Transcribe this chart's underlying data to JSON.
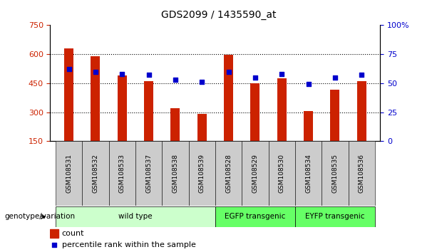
{
  "title": "GDS2099 / 1435590_at",
  "samples": [
    "GSM108531",
    "GSM108532",
    "GSM108533",
    "GSM108537",
    "GSM108538",
    "GSM108539",
    "GSM108528",
    "GSM108529",
    "GSM108530",
    "GSM108534",
    "GSM108535",
    "GSM108536"
  ],
  "counts": [
    630,
    590,
    490,
    460,
    320,
    290,
    595,
    450,
    475,
    305,
    415,
    460
  ],
  "percentiles": [
    62,
    60,
    58,
    57,
    53,
    51,
    60,
    55,
    58,
    49,
    55,
    57
  ],
  "y_min": 150,
  "y_max": 750,
  "y_ticks": [
    150,
    300,
    450,
    600,
    750
  ],
  "y2_ticks": [
    0,
    25,
    50,
    75,
    100
  ],
  "bar_color": "#CC2200",
  "dot_color": "#0000CC",
  "grid_color": "#000000",
  "groups": [
    {
      "label": "wild type",
      "start": 0,
      "end": 6,
      "color": "#CCFFCC"
    },
    {
      "label": "EGFP transgenic",
      "start": 6,
      "end": 9,
      "color": "#66FF66"
    },
    {
      "label": "EYFP transgenic",
      "start": 9,
      "end": 12,
      "color": "#66FF66"
    }
  ],
  "group_label": "genotype/variation",
  "legend_count": "count",
  "legend_percentile": "percentile rank within the sample",
  "bg_color": "#FFFFFF",
  "plot_bg_color": "#FFFFFF",
  "tick_label_color_left": "#CC2200",
  "tick_label_color_right": "#0000CC",
  "tick_area_color": "#CCCCCC"
}
